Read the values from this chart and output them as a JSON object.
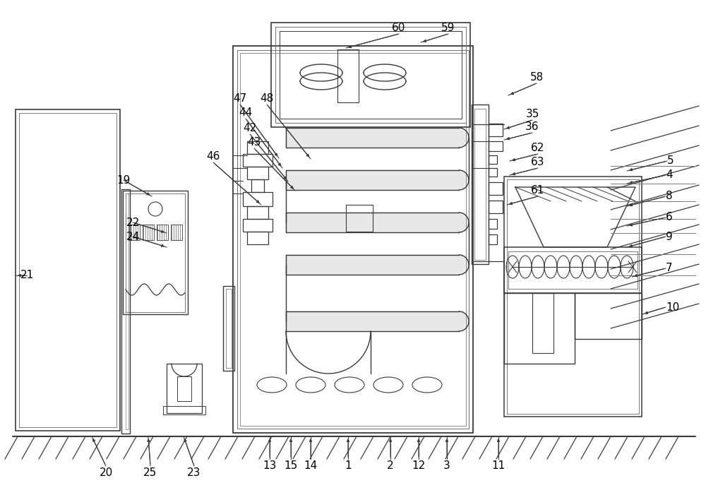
{
  "bg_color": "#ffffff",
  "lc": "#3a3a3a",
  "lc2": "#7a7a7a",
  "figsize": [
    10.0,
    6.84
  ],
  "dpi": 100
}
